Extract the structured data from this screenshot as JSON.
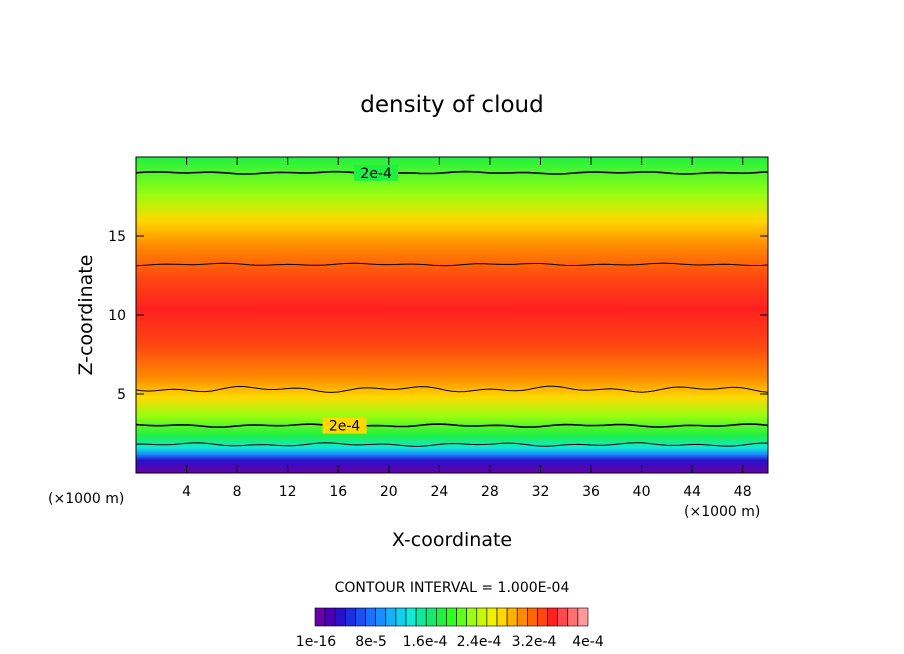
{
  "chart_data": {
    "type": "heatmap",
    "title": "density of cloud",
    "xlabel": "X-coordinate",
    "ylabel": "Z-coordinate",
    "x_unit": "(×1000 m)",
    "y_unit": "(×1000 m)",
    "xlim": [
      0,
      50
    ],
    "ylim": [
      0,
      20
    ],
    "xticks": [
      4,
      8,
      12,
      16,
      20,
      24,
      28,
      32,
      36,
      40,
      44,
      48
    ],
    "yticks": [
      5,
      10,
      15
    ],
    "contour_interval_text": "CONTOUR INTERVAL = 1.000E-04",
    "contour_labels": [
      "2e-4",
      "2e-4"
    ],
    "colorbar": {
      "colors": [
        "#6a00a8",
        "#4a00b4",
        "#2a10c8",
        "#1a30e0",
        "#1a50f0",
        "#1a70ff",
        "#1890ff",
        "#18b0f8",
        "#10d0f0",
        "#10e8d8",
        "#10e8a0",
        "#18e870",
        "#20f040",
        "#30ff20",
        "#60ff18",
        "#98ff10",
        "#c8f808",
        "#f0f000",
        "#ffd800",
        "#ffb000",
        "#ff8c00",
        "#ff6800",
        "#ff4810",
        "#ff2020",
        "#ff4850",
        "#ff7070",
        "#ff9898"
      ],
      "labels": [
        "1e-16",
        "8e-5",
        "1.6e-4",
        "2.4e-4",
        "3.2e-4",
        "4e-4"
      ]
    },
    "field": {
      "description_levels": [
        {
          "z": 0.8,
          "value": 1e-16
        },
        {
          "z": 1.2,
          "value": 3e-05
        },
        {
          "z": 1.8,
          "value": 0.0001
        },
        {
          "z": 3.0,
          "value": 0.0002
        },
        {
          "z": 5.3,
          "value": 0.0003
        },
        {
          "z": 9.0,
          "value": 0.00036
        },
        {
          "z": 13.2,
          "value": 0.0003
        },
        {
          "z": 16.0,
          "value": 0.00026
        },
        {
          "z": 19.0,
          "value": 0.0002
        }
      ]
    }
  }
}
